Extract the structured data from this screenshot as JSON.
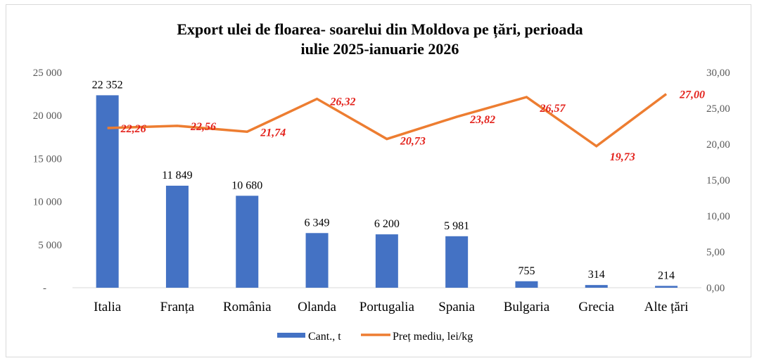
{
  "chart_data": {
    "type": "bar+line",
    "title_lines": [
      "Export ulei de floarea- soarelui din Moldova pe țări, perioada",
      "iulie 2025-ianuarie 2026"
    ],
    "categories": [
      "Italia",
      "Franța",
      "România",
      "Olanda",
      "Portugalia",
      "Spania",
      "Bulgaria",
      "Grecia",
      "Alte țări"
    ],
    "series": [
      {
        "name": "Cant., t",
        "type": "bar",
        "axis": "left",
        "color": "#4472c4",
        "values": [
          22352,
          11849,
          10680,
          6349,
          6200,
          5981,
          755,
          314,
          214
        ],
        "labels": [
          "22 352",
          "11 849",
          "10 680",
          "6 349",
          "6 200",
          "5 981",
          "755",
          "314",
          "214"
        ]
      },
      {
        "name": "Preț mediu, lei/kg",
        "type": "line",
        "axis": "right",
        "color": "#ed7d31",
        "label_color": "#e3211b",
        "values": [
          22.26,
          22.56,
          21.74,
          26.32,
          20.73,
          23.82,
          26.57,
          19.73,
          27.0
        ],
        "labels": [
          "22,26",
          "22,56",
          "21,74",
          "26,32",
          "20,73",
          "23,82",
          "26,57",
          "19,73",
          "27,00"
        ]
      }
    ],
    "left_axis": {
      "ylim": [
        0,
        25000
      ],
      "ticks": [
        "-",
        "5 000",
        "10 000",
        "15 000",
        "20 000",
        "25 000"
      ]
    },
    "right_axis": {
      "ylim": [
        0,
        30
      ],
      "ticks": [
        "0,00",
        "5,00",
        "10,00",
        "15,00",
        "20,00",
        "25,00",
        "30,00"
      ]
    },
    "legend": "bottom",
    "grid": false
  }
}
